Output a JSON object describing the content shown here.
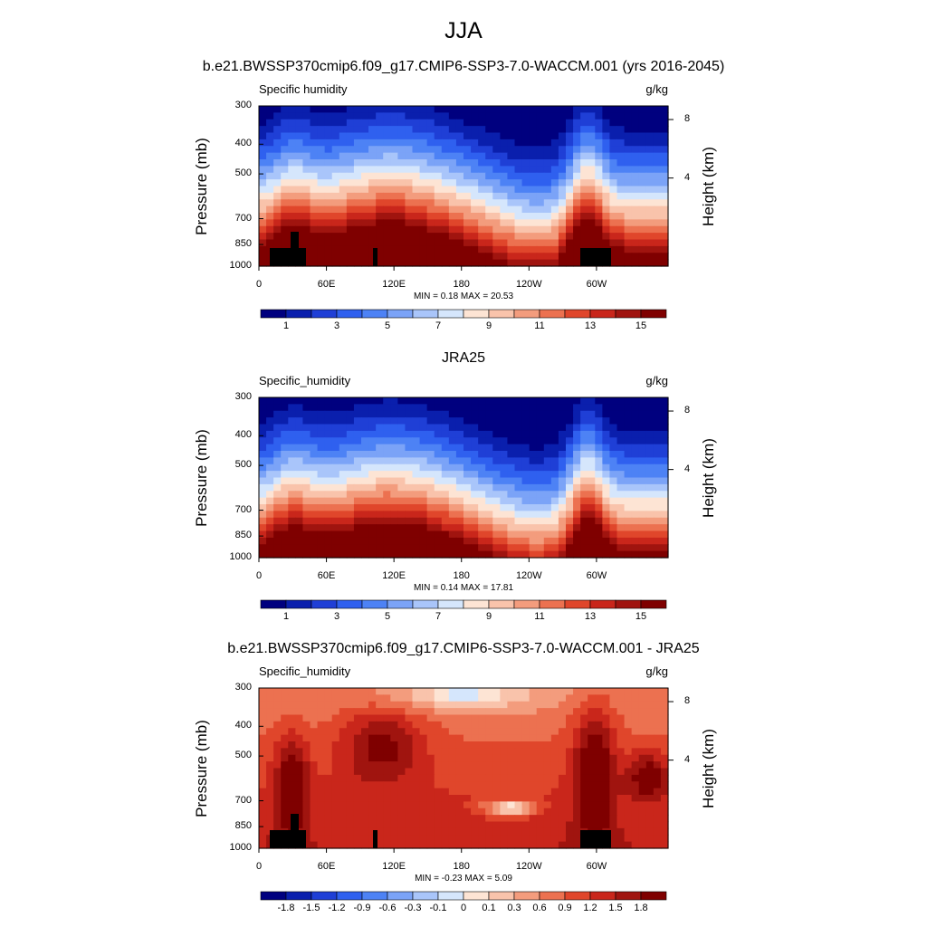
{
  "figure_title": "JJA",
  "chart_data": [
    {
      "type": "heatmap",
      "title": "b.e21.BWSSP370cmip6.f09_g17.CMIP6-SSP3-7.0-WACCM.001 (yrs 2016-2045)",
      "left_label": "Specific humidity",
      "right_label": "g/kg",
      "ylabel": "Pressure (mb)",
      "ylabel_right": "Height (km)",
      "yticks": [
        "300",
        "400",
        "500",
        "700",
        "850",
        "1000"
      ],
      "yticks_right": [
        "8",
        "4"
      ],
      "xticks": [
        "0",
        "60E",
        "120E",
        "180",
        "120W",
        "60W"
      ],
      "stats": "MIN =  0.18  MAX =  20.53",
      "min": 0.18,
      "max": 20.53,
      "colorbar_labels": [
        "1",
        "3",
        "5",
        "7",
        "9",
        "11",
        "13",
        "15"
      ],
      "colors": [
        "#00007f",
        "#0a1fad",
        "#1f3fd6",
        "#2f60ef",
        "#4d82f5",
        "#7ba3f7",
        "#a9c5fa",
        "#d5e6fc",
        "#fde4d4",
        "#f9c3ab",
        "#f39c7d",
        "#ec7150",
        "#e0462b",
        "#c9261b",
        "#a0140f",
        "#7f0000"
      ]
    },
    {
      "type": "heatmap",
      "title": "JRA25",
      "left_label": "Specific_humidity",
      "right_label": "g/kg",
      "ylabel": "Pressure (mb)",
      "ylabel_right": "Height (km)",
      "yticks": [
        "300",
        "400",
        "500",
        "700",
        "850",
        "1000"
      ],
      "yticks_right": [
        "8",
        "4"
      ],
      "xticks": [
        "0",
        "60E",
        "120E",
        "180",
        "120W",
        "60W"
      ],
      "stats": "MIN =  0.14  MAX =  17.81",
      "min": 0.14,
      "max": 17.81,
      "colorbar_labels": [
        "1",
        "3",
        "5",
        "7",
        "9",
        "11",
        "13",
        "15"
      ],
      "colors": [
        "#00007f",
        "#0a1fad",
        "#1f3fd6",
        "#2f60ef",
        "#4d82f5",
        "#7ba3f7",
        "#a9c5fa",
        "#d5e6fc",
        "#fde4d4",
        "#f9c3ab",
        "#f39c7d",
        "#ec7150",
        "#e0462b",
        "#c9261b",
        "#a0140f",
        "#7f0000"
      ]
    },
    {
      "type": "heatmap",
      "title": "b.e21.BWSSP370cmip6.f09_g17.CMIP6-SSP3-7.0-WACCM.001 - JRA25",
      "left_label": "Specific_humidity",
      "right_label": "g/kg",
      "ylabel": "Pressure (mb)",
      "ylabel_right": "Height (km)",
      "yticks": [
        "300",
        "400",
        "500",
        "700",
        "850",
        "1000"
      ],
      "yticks_right": [
        "8",
        "4"
      ],
      "xticks": [
        "0",
        "60E",
        "120E",
        "180",
        "120W",
        "60W"
      ],
      "stats": "MIN = -0.23  MAX =   5.09",
      "min": -0.23,
      "max": 5.09,
      "colorbar_labels": [
        "-1.8",
        "-1.5",
        "-1.2",
        "-0.9",
        "-0.6",
        "-0.3",
        "-0.1",
        "0",
        "0.1",
        "0.3",
        "0.6",
        "0.9",
        "1.2",
        "1.5",
        "1.8"
      ],
      "colors": [
        "#00007f",
        "#0a1fad",
        "#1f3fd6",
        "#2f60ef",
        "#4d82f5",
        "#7ba3f7",
        "#a9c5fa",
        "#d5e6fc",
        "#fde4d4",
        "#f9c3ab",
        "#f39c7d",
        "#ec7150",
        "#e0462b",
        "#c9261b",
        "#a0140f",
        "#7f0000"
      ]
    }
  ]
}
